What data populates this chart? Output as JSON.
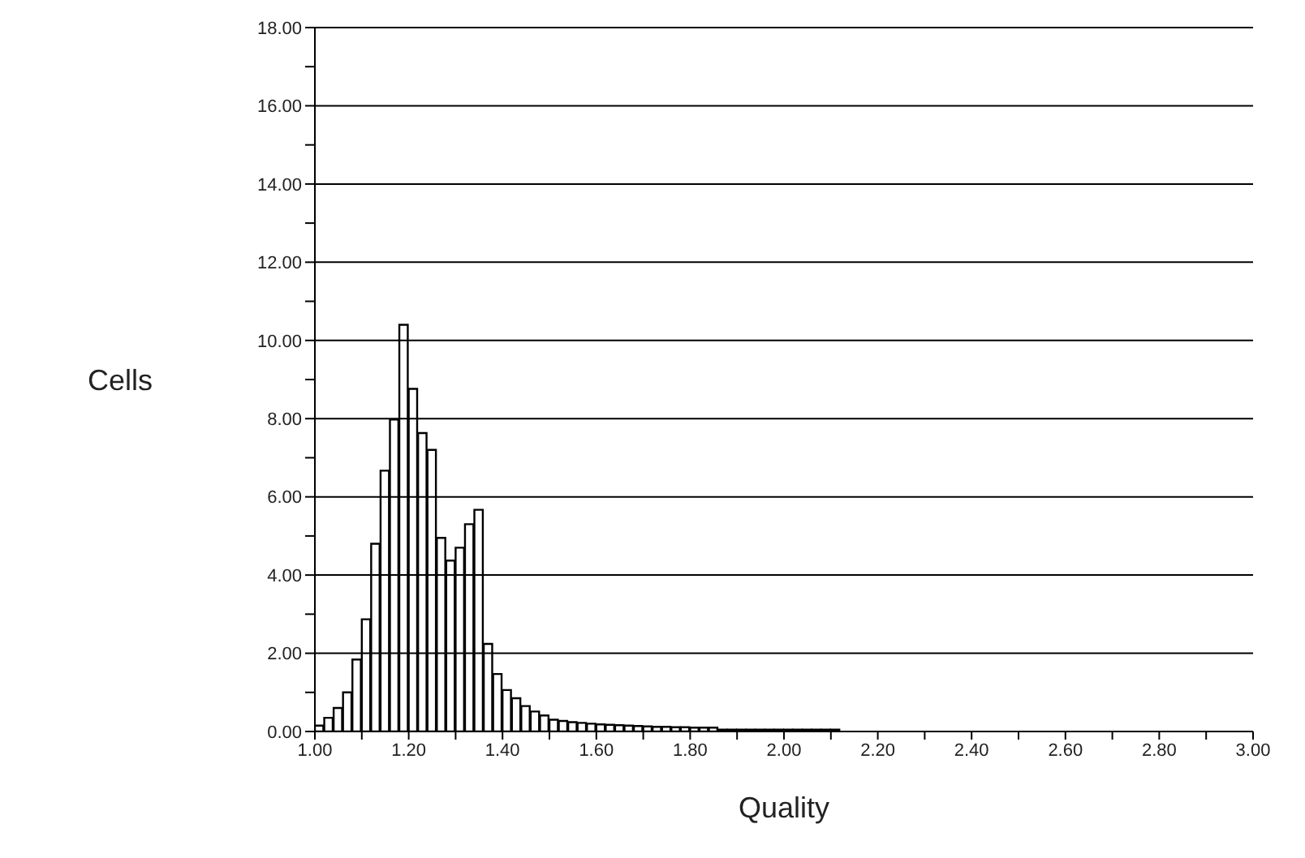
{
  "chart_data": {
    "type": "histogram",
    "xlabel": "Quality",
    "ylabel": "Cells",
    "color": "#000000",
    "bins": [
      1.0,
      1.02,
      1.04,
      1.06,
      1.08,
      1.1,
      1.12,
      1.14,
      1.16,
      1.18,
      1.2,
      1.22,
      1.24,
      1.26,
      1.28,
      1.3,
      1.32,
      1.34,
      1.36,
      1.38,
      1.4,
      1.42,
      1.44,
      1.46,
      1.48,
      1.5,
      1.52,
      1.54,
      1.56,
      1.58,
      1.6,
      1.62,
      1.64,
      1.66,
      1.68,
      1.7,
      1.72,
      1.74,
      1.76,
      1.78,
      1.8,
      1.82,
      1.84,
      1.86,
      1.88,
      1.9,
      1.92,
      1.94,
      1.96,
      1.98,
      2.0,
      2.02,
      2.04,
      2.06,
      2.08,
      2.1,
      2.12
    ],
    "values": [
      0.15,
      0.35,
      0.6,
      1.0,
      1.84,
      2.87,
      4.8,
      6.67,
      7.98,
      10.4,
      8.76,
      7.63,
      7.2,
      4.95,
      4.37,
      4.7,
      5.3,
      5.67,
      2.24,
      1.47,
      1.06,
      0.85,
      0.65,
      0.51,
      0.41,
      0.3,
      0.27,
      0.24,
      0.22,
      0.2,
      0.18,
      0.17,
      0.16,
      0.15,
      0.14,
      0.13,
      0.12,
      0.12,
      0.11,
      0.11,
      0.1,
      0.1,
      0.1,
      0.05,
      0.05,
      0.05,
      0.05,
      0.05,
      0.05,
      0.05,
      0.05,
      0.05,
      0.05,
      0.05,
      0.05,
      0.05
    ],
    "xlim": [
      1.0,
      3.0
    ],
    "xticks": [
      {
        "value": 1.0,
        "label": "1.00"
      },
      {
        "value": 1.1,
        "label": null
      },
      {
        "value": 1.2,
        "label": "1.20"
      },
      {
        "value": 1.3,
        "label": null
      },
      {
        "value": 1.4,
        "label": "1.40"
      },
      {
        "value": 1.5,
        "label": null
      },
      {
        "value": 1.6,
        "label": "1.60"
      },
      {
        "value": 1.7,
        "label": null
      },
      {
        "value": 1.8,
        "label": "1.80"
      },
      {
        "value": 1.9,
        "label": null
      },
      {
        "value": 2.0,
        "label": "2.00"
      },
      {
        "value": 2.1,
        "label": null
      },
      {
        "value": 2.2,
        "label": "2.20"
      },
      {
        "value": 2.3,
        "label": null
      },
      {
        "value": 2.4,
        "label": "2.40"
      },
      {
        "value": 2.5,
        "label": null
      },
      {
        "value": 2.6,
        "label": "2.60"
      },
      {
        "value": 2.7,
        "label": null
      },
      {
        "value": 2.8,
        "label": "2.80"
      },
      {
        "value": 2.9,
        "label": null
      },
      {
        "value": 3.0,
        "label": "3.00"
      }
    ],
    "ylim": [
      0,
      18
    ],
    "yticks": [
      {
        "value": 0,
        "label": "0.00"
      },
      {
        "value": 1,
        "label": null
      },
      {
        "value": 2,
        "label": "2.00"
      },
      {
        "value": 3,
        "label": null
      },
      {
        "value": 4,
        "label": "4.00"
      },
      {
        "value": 5,
        "label": null
      },
      {
        "value": 6,
        "label": "6.00"
      },
      {
        "value": 7,
        "label": null
      },
      {
        "value": 8,
        "label": "8.00"
      },
      {
        "value": 9,
        "label": null
      },
      {
        "value": 10,
        "label": "10.00"
      },
      {
        "value": 11,
        "label": null
      },
      {
        "value": 12,
        "label": "12.00"
      },
      {
        "value": 13,
        "label": null
      },
      {
        "value": 14,
        "label": "14.00"
      },
      {
        "value": 15,
        "label": null
      },
      {
        "value": 16,
        "label": "16.00"
      },
      {
        "value": 17,
        "label": null
      },
      {
        "value": 18,
        "label": "18.00"
      }
    ],
    "grid": "y"
  }
}
